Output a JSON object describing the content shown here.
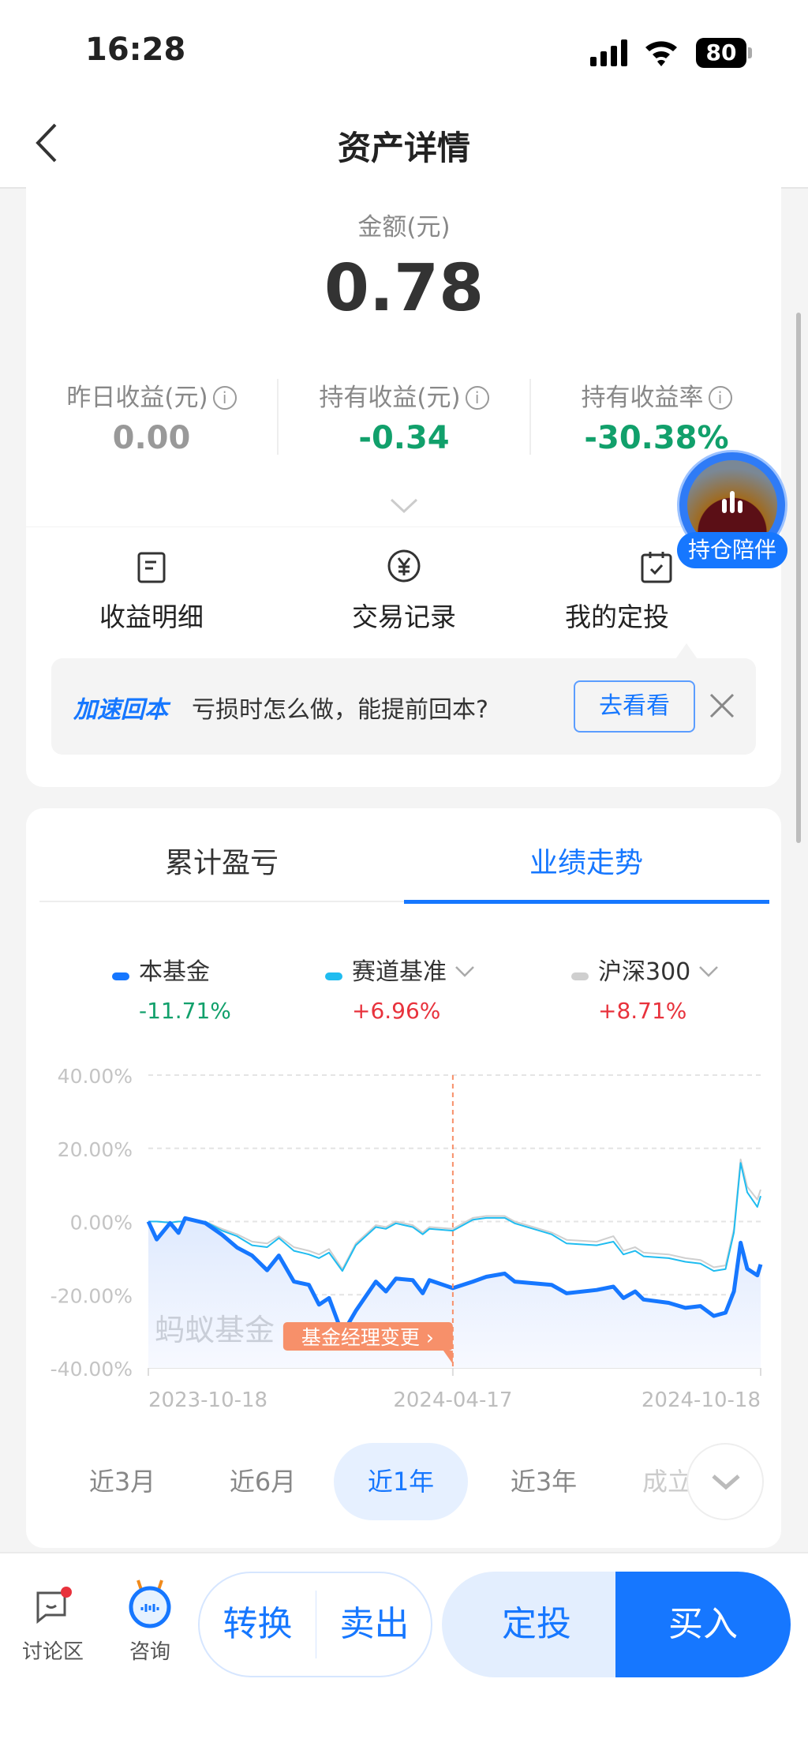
{
  "status": {
    "time": "16:28",
    "battery": "80"
  },
  "nav": {
    "title": "资产详情",
    "back_icon": "chevron-left-icon"
  },
  "summary": {
    "amount_label": "金额(元)",
    "amount": "0.78",
    "stats": [
      {
        "label": "昨日收益(元)",
        "value": "0.00",
        "color": "#999999"
      },
      {
        "label": "持有收益(元)",
        "value": "-0.34",
        "color": "#11a06b"
      },
      {
        "label": "持有收益率",
        "value": "-30.38%",
        "color": "#11a06b"
      }
    ],
    "info_glyph": "i"
  },
  "actions": [
    {
      "label": "收益明细",
      "icon": "document-icon"
    },
    {
      "label": "交易记录",
      "icon": "yuan-circle-icon"
    },
    {
      "label": "我的定投",
      "icon": "calendar-check-icon"
    }
  ],
  "float_badge": {
    "label": "持仓陪伴"
  },
  "banner": {
    "tag": "加速回本",
    "text": "亏损时怎么做，能提前回本?",
    "button": "去看看"
  },
  "tabs": [
    {
      "label": "累计盈亏",
      "active": false
    },
    {
      "label": "业绩走势",
      "active": true
    }
  ],
  "legend": [
    {
      "name": "本基金",
      "value": "-11.71%",
      "color": "#1677ff",
      "value_color": "#11a06b",
      "dropdown": false
    },
    {
      "name": "赛道基准",
      "value": "+6.96%",
      "color": "#1fbcf0",
      "value_color": "#e8323c",
      "dropdown": true
    },
    {
      "name": "沪深300",
      "value": "+8.71%",
      "color": "#cfcfcf",
      "value_color": "#e8323c",
      "dropdown": true
    }
  ],
  "chart_data": {
    "type": "line",
    "ylim": [
      -40,
      40
    ],
    "yticks": [
      "40.00%",
      "20.00%",
      "0.00%",
      "-20.00%",
      "-40.00%"
    ],
    "ytick_values": [
      40,
      20,
      0,
      -20,
      -40
    ],
    "xticks": [
      "2023-10-18",
      "2024-04-17",
      "2024-10-18"
    ],
    "xlim": [
      "2023-10-18",
      "2024-10-18"
    ],
    "grid": true,
    "watermark": "蚂蚁基金",
    "annotation": {
      "date": "2024-04-17",
      "label": "基金经理变更 ›",
      "color": "#f7906a"
    },
    "x": [
      "2023-10-18",
      "2023-10-23",
      "2023-10-31",
      "2023-11-05",
      "2023-11-09",
      "2023-11-21",
      "2023-12-01",
      "2023-12-10",
      "2023-12-19",
      "2023-12-28",
      "2024-01-04",
      "2024-01-13",
      "2024-01-22",
      "2024-01-28",
      "2024-02-03",
      "2024-02-11",
      "2024-02-19",
      "2024-03-02",
      "2024-03-08",
      "2024-03-14",
      "2024-03-24",
      "2024-03-30",
      "2024-04-03",
      "2024-04-17",
      "2024-04-29",
      "2024-05-07",
      "2024-05-18",
      "2024-05-24",
      "2024-06-15",
      "2024-06-24",
      "2024-07-12",
      "2024-07-22",
      "2024-07-28",
      "2024-08-04",
      "2024-08-09",
      "2024-08-24",
      "2024-09-03",
      "2024-09-12",
      "2024-09-20",
      "2024-09-27",
      "2024-10-02",
      "2024-10-06",
      "2024-10-10",
      "2024-10-16",
      "2024-10-18"
    ],
    "series": [
      {
        "name": "沪深300",
        "color": "#cfcfcf",
        "values": [
          0,
          0,
          -0.3,
          0,
          0,
          0,
          -2,
          -3.5,
          -5.5,
          -6,
          -4,
          -7,
          -8,
          -9,
          -7.5,
          -13,
          -6,
          -1,
          -1.5,
          0,
          -1,
          -3,
          -1.5,
          -2,
          1,
          1.5,
          1.5,
          0,
          -3,
          -5,
          -5.5,
          -4,
          -8,
          -7,
          -8.5,
          -9,
          -10,
          -10.5,
          -12.5,
          -12,
          -2,
          17,
          9.5,
          6,
          8.71
        ]
      },
      {
        "name": "赛道基准",
        "color": "#1fbcf0",
        "values": [
          0,
          0,
          -0.3,
          0,
          0,
          0,
          -2.5,
          -4,
          -6.5,
          -7,
          -4.5,
          -8,
          -9,
          -10,
          -8.5,
          -13.5,
          -6.5,
          -1.5,
          -2,
          -0.5,
          -1.5,
          -3.5,
          -2,
          -2.5,
          0.5,
          1,
          1,
          -0.5,
          -3.5,
          -6,
          -6.5,
          -5.5,
          -9,
          -8,
          -9.5,
          -10,
          -11,
          -11.5,
          -13.5,
          -13,
          -3,
          16,
          8,
          4,
          6.96
        ]
      },
      {
        "name": "本基金",
        "color": "#1677ff",
        "values": [
          0,
          -4.9,
          -0.4,
          -3.1,
          0.9,
          -0.4,
          -3.6,
          -7.1,
          -9.3,
          -13.3,
          -9.3,
          -16.4,
          -17.3,
          -22.7,
          -20.9,
          -30.7,
          -24.4,
          -16.4,
          -19.1,
          -15.6,
          -16,
          -19.6,
          -16,
          -18.2,
          -16.4,
          -15.1,
          -14.2,
          -16.4,
          -17.3,
          -19.6,
          -18.7,
          -17.8,
          -20.9,
          -19.1,
          -21.3,
          -22.2,
          -23.6,
          -23.1,
          -25.8,
          -24.9,
          -19.1,
          -5.8,
          -12.9,
          -14.7,
          -11.71
        ]
      }
    ]
  },
  "ranges": [
    {
      "label": "近3月",
      "active": false
    },
    {
      "label": "近6月",
      "active": false
    },
    {
      "label": "近1年",
      "active": true
    },
    {
      "label": "近3年",
      "active": false
    },
    {
      "label": "成立",
      "active": false
    }
  ],
  "bottom": {
    "discuss": "讨论区",
    "consult": "咨询",
    "convert": "转换",
    "sell": "卖出",
    "auto_invest": "定投",
    "buy": "买入"
  }
}
